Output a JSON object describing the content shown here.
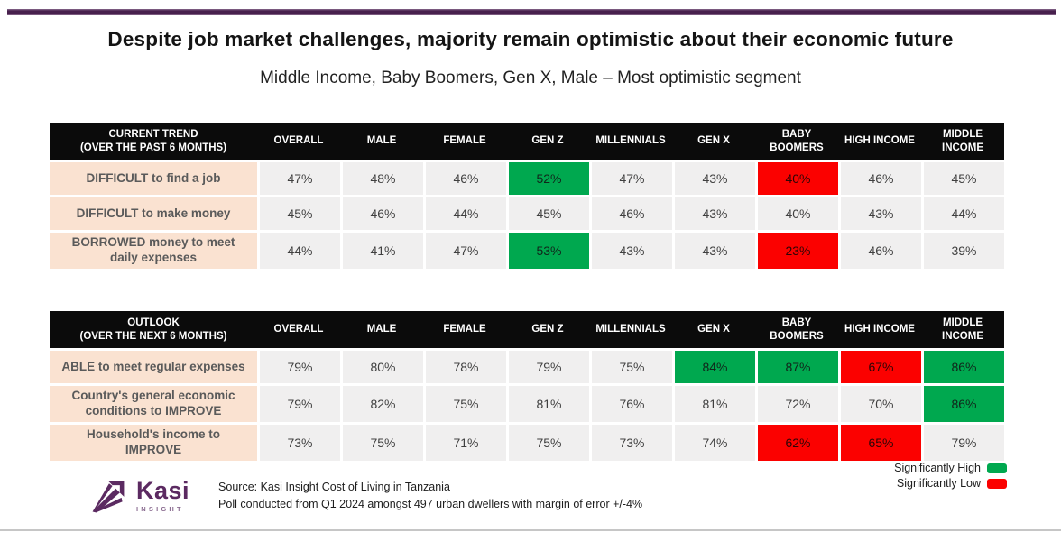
{
  "page": {
    "title": "Despite job market challenges, majority remain optimistic about their economic future",
    "subtitle": "Middle Income, Baby Boomers, Gen X, Male – Most optimistic segment"
  },
  "chart_data": {
    "type": "table",
    "columns": [
      "OVERALL",
      "MALE",
      "FEMALE",
      "GEN Z",
      "MILLENNIALS",
      "GEN X",
      "BABY BOOMERS",
      "HIGH INCOME",
      "MIDDLE INCOME"
    ],
    "tables": [
      {
        "header": "CURRENT TREND\n(OVER THE PAST 6 MONTHS)",
        "rows": [
          {
            "label": "DIFFICULT to find a job",
            "values": [
              "47%",
              "48%",
              "46%",
              "52%",
              "47%",
              "43%",
              "40%",
              "46%",
              "45%"
            ],
            "highlights": [
              "",
              "",
              "",
              "high",
              "",
              "",
              "low",
              "",
              ""
            ]
          },
          {
            "label": "DIFFICULT to make money",
            "values": [
              "45%",
              "46%",
              "44%",
              "45%",
              "46%",
              "43%",
              "40%",
              "43%",
              "44%"
            ],
            "highlights": [
              "",
              "",
              "",
              "",
              "",
              "",
              "",
              "",
              ""
            ]
          },
          {
            "label": "BORROWED money to meet daily expenses",
            "values": [
              "44%",
              "41%",
              "47%",
              "53%",
              "43%",
              "43%",
              "23%",
              "46%",
              "39%"
            ],
            "highlights": [
              "",
              "",
              "",
              "high",
              "",
              "",
              "low",
              "",
              ""
            ]
          }
        ]
      },
      {
        "header": "OUTLOOK\n(OVER THE NEXT 6 MONTHS)",
        "rows": [
          {
            "label": "ABLE to meet regular expenses",
            "values": [
              "79%",
              "80%",
              "78%",
              "79%",
              "75%",
              "84%",
              "87%",
              "67%",
              "86%"
            ],
            "highlights": [
              "",
              "",
              "",
              "",
              "",
              "high",
              "high",
              "low",
              "high"
            ]
          },
          {
            "label": "Country's general economic conditions to IMPROVE",
            "values": [
              "79%",
              "82%",
              "75%",
              "81%",
              "76%",
              "81%",
              "72%",
              "70%",
              "86%"
            ],
            "highlights": [
              "",
              "",
              "",
              "",
              "",
              "",
              "",
              "",
              "high"
            ]
          },
          {
            "label": "Household's income to IMPROVE",
            "values": [
              "73%",
              "75%",
              "71%",
              "75%",
              "73%",
              "74%",
              "62%",
              "65%",
              "79%"
            ],
            "highlights": [
              "",
              "",
              "",
              "",
              "",
              "",
              "low",
              "low",
              ""
            ]
          }
        ]
      }
    ],
    "legend": [
      {
        "label": "Significantly High",
        "style": "high",
        "color": "#00A84F"
      },
      {
        "label": "Significantly Low",
        "style": "low",
        "color": "#FB0100"
      }
    ]
  },
  "footer": {
    "logo": {
      "name": "Kasi",
      "sub": "INSIGHT"
    },
    "source_line1": "Source: Kasi Insight Cost of Living in Tanzania",
    "source_line2": "Poll conducted from Q1 2024 amongst 497 urban dwellers with margin of error +/-4%"
  },
  "colors": {
    "accent_purple": "#47204D",
    "logo_purple": "#5B2A61",
    "green": "#00A84F",
    "red": "#FB0100",
    "peach": "#FAE2D1",
    "cell_gray": "#F0EFEF",
    "header_black": "#0B0B0B"
  }
}
